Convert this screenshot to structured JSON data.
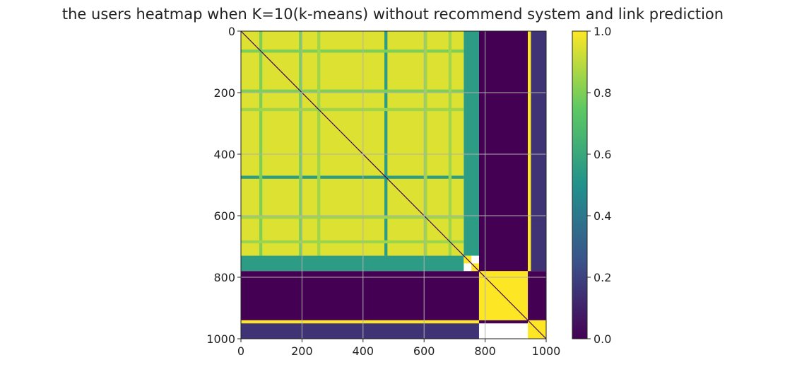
{
  "chart_data": {
    "type": "heatmap",
    "title": "the users heatmap when K=10(k-means) without recommend system and link prediction",
    "xlabel": "",
    "ylabel": "",
    "x_ticks": [
      "0",
      "200",
      "400",
      "600",
      "800",
      "1000"
    ],
    "y_ticks": [
      "0",
      "200",
      "400",
      "600",
      "800",
      "1000"
    ],
    "xlim": [
      0,
      1000
    ],
    "ylim": [
      1000,
      0
    ],
    "grid": true,
    "colormap": "viridis",
    "colorbar": {
      "ticks": [
        "0.0",
        "0.2",
        "0.4",
        "0.6",
        "0.8",
        "1.0"
      ],
      "range": [
        0.0,
        1.0
      ]
    },
    "diagonal_value": 0.0,
    "blocks": [
      {
        "rows": [
          0,
          730
        ],
        "cols": [
          0,
          730
        ],
        "value": 0.95,
        "note": "large similar cluster with stripes"
      },
      {
        "rows": [
          0,
          730
        ],
        "cols": [
          730,
          780
        ],
        "value": 0.55
      },
      {
        "rows": [
          0,
          780
        ],
        "cols": [
          780,
          940
        ],
        "value": 0.0
      },
      {
        "rows": [
          0,
          780
        ],
        "cols": [
          940,
          950
        ],
        "value": 1.0
      },
      {
        "rows": [
          0,
          780
        ],
        "cols": [
          950,
          1000
        ],
        "value": 0.15
      },
      {
        "rows": [
          730,
          780
        ],
        "cols": [
          0,
          730
        ],
        "value": 0.55
      },
      {
        "rows": [
          730,
          755
        ],
        "cols": [
          730,
          755
        ],
        "value": 1.0
      },
      {
        "rows": [
          755,
          780
        ],
        "cols": [
          755,
          780
        ],
        "value": 1.0
      },
      {
        "rows": [
          780,
          940
        ],
        "cols": [
          0,
          780
        ],
        "value": 0.0
      },
      {
        "rows": [
          780,
          940
        ],
        "cols": [
          780,
          940
        ],
        "value": 1.0
      },
      {
        "rows": [
          780,
          940
        ],
        "cols": [
          940,
          1000
        ],
        "value": 0.0
      },
      {
        "rows": [
          940,
          950
        ],
        "cols": [
          0,
          780
        ],
        "value": 1.0
      },
      {
        "rows": [
          940,
          950
        ],
        "cols": [
          780,
          940
        ],
        "value": 0.0
      },
      {
        "rows": [
          950,
          1000
        ],
        "cols": [
          0,
          780
        ],
        "value": 0.15
      },
      {
        "rows": [
          940,
          1000
        ],
        "cols": [
          940,
          1000
        ],
        "value": 1.0
      }
    ],
    "stripes": [
      {
        "orientation": "both",
        "start": 470,
        "end": 480,
        "value": 0.55
      },
      {
        "orientation": "both",
        "start": 190,
        "end": 200,
        "value": 0.8
      },
      {
        "orientation": "both",
        "start": 60,
        "end": 70,
        "value": 0.8
      },
      {
        "orientation": "both",
        "start": 250,
        "end": 260,
        "value": 0.85
      },
      {
        "orientation": "both",
        "start": 600,
        "end": 610,
        "value": 0.85
      },
      {
        "orientation": "both",
        "start": 680,
        "end": 690,
        "value": 0.85
      }
    ]
  }
}
